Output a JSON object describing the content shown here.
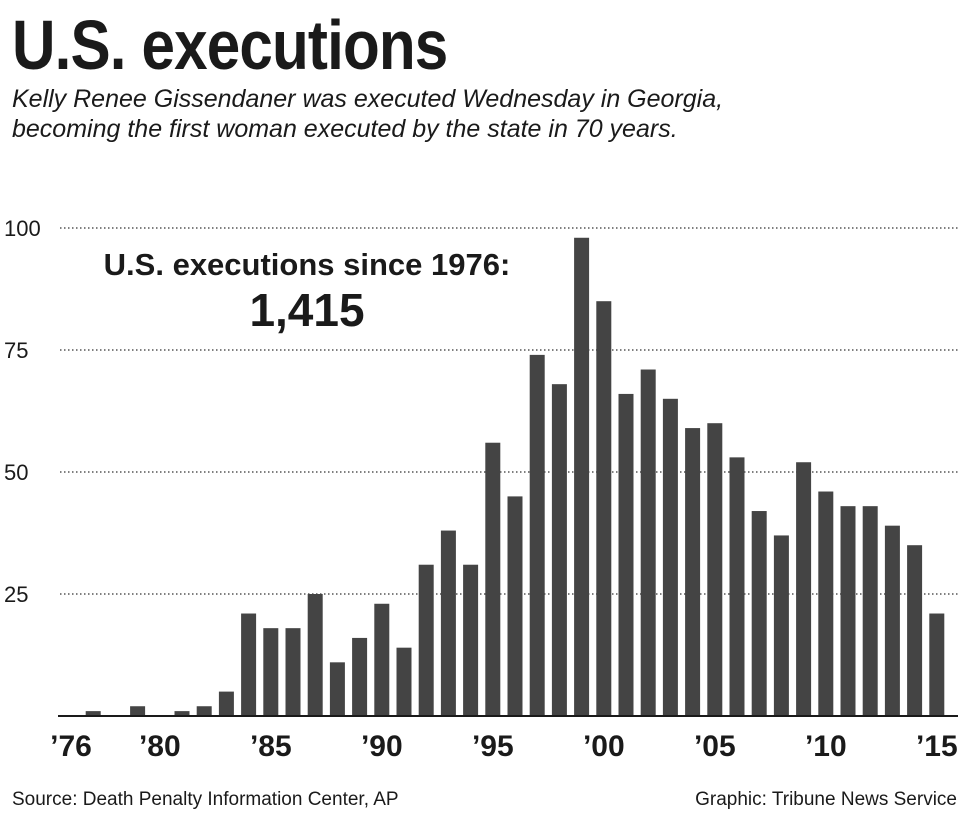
{
  "header": {
    "title": "U.S. executions",
    "subtitle_line1": "Kelly Renee Gissendaner was executed Wednesday in Georgia,",
    "subtitle_line2": "becoming the first woman executed by the state in 70 years."
  },
  "callout": {
    "label": "U.S. executions since 1976:",
    "value": "1,415"
  },
  "footer": {
    "source": "Source: Death Penalty Information Center, AP",
    "credit": "Graphic: Tribune News Service"
  },
  "colors": {
    "bar": "#444444",
    "text": "#1a1a1a",
    "grid": "#333333",
    "background": "#ffffff"
  },
  "chart_data": {
    "type": "bar",
    "title": "U.S. executions",
    "xlabel": "",
    "ylabel": "",
    "ylim": [
      0,
      100
    ],
    "yticks": [
      25,
      50,
      75,
      100
    ],
    "grid": true,
    "grid_style": "dotted",
    "x": [
      1976,
      1977,
      1978,
      1979,
      1980,
      1981,
      1982,
      1983,
      1984,
      1985,
      1986,
      1987,
      1988,
      1989,
      1990,
      1991,
      1992,
      1993,
      1994,
      1995,
      1996,
      1997,
      1998,
      1999,
      2000,
      2001,
      2002,
      2003,
      2004,
      2005,
      2006,
      2007,
      2008,
      2009,
      2010,
      2011,
      2012,
      2013,
      2014,
      2015
    ],
    "values": [
      0,
      1,
      0,
      2,
      0,
      1,
      2,
      5,
      21,
      18,
      18,
      25,
      11,
      16,
      23,
      14,
      31,
      38,
      31,
      56,
      45,
      74,
      68,
      98,
      85,
      66,
      71,
      65,
      59,
      60,
      53,
      42,
      37,
      52,
      46,
      43,
      43,
      39,
      35,
      21
    ],
    "xtick_labels": [
      {
        "year": 1976,
        "label": "’76"
      },
      {
        "year": 1980,
        "label": "’80"
      },
      {
        "year": 1985,
        "label": "’85"
      },
      {
        "year": 1990,
        "label": "’90"
      },
      {
        "year": 1995,
        "label": "’95"
      },
      {
        "year": 2000,
        "label": "’00"
      },
      {
        "year": 2005,
        "label": "’05"
      },
      {
        "year": 2010,
        "label": "’10"
      },
      {
        "year": 2015,
        "label": "’15"
      }
    ]
  }
}
